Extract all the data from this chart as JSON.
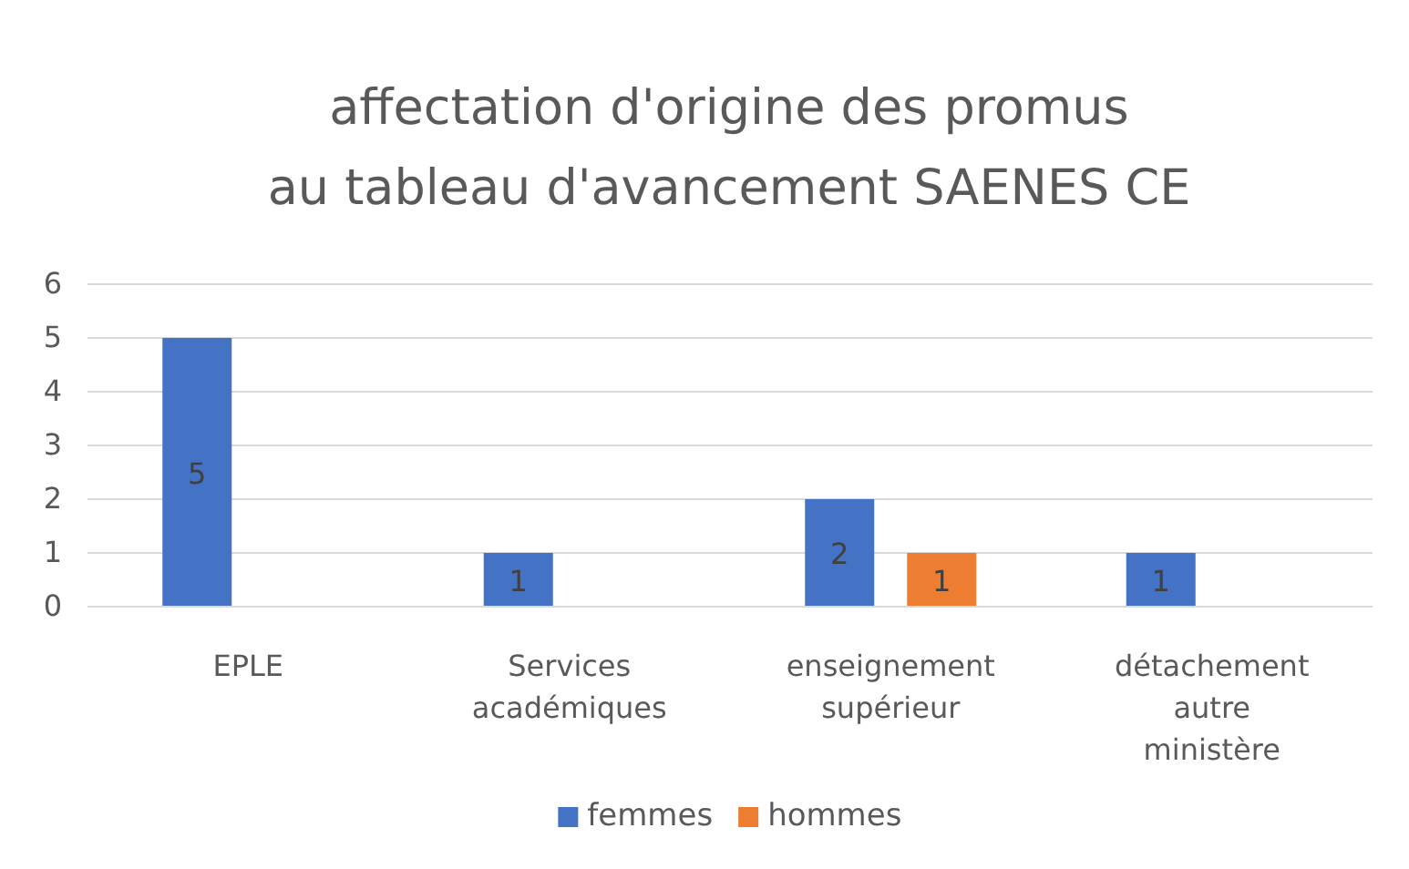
{
  "chart_data": {
    "type": "bar",
    "title": "affectation d'origine des promus\nau tableau d'avancement SAENES CE",
    "categories": [
      "EPLE",
      "Services académiques",
      "enseignement supérieur",
      "détachement autre ministère"
    ],
    "series": [
      {
        "name": "femmes",
        "color": "#4472c4",
        "values": [
          5,
          1,
          2,
          1
        ]
      },
      {
        "name": "hommes",
        "color": "#ed7d31",
        "values": [
          null,
          null,
          1,
          null
        ]
      }
    ],
    "ylim": [
      0,
      6
    ],
    "yticks": [
      0,
      1,
      2,
      3,
      4,
      5,
      6
    ],
    "grid": "y",
    "legend": "bottom",
    "data_labels": true
  }
}
